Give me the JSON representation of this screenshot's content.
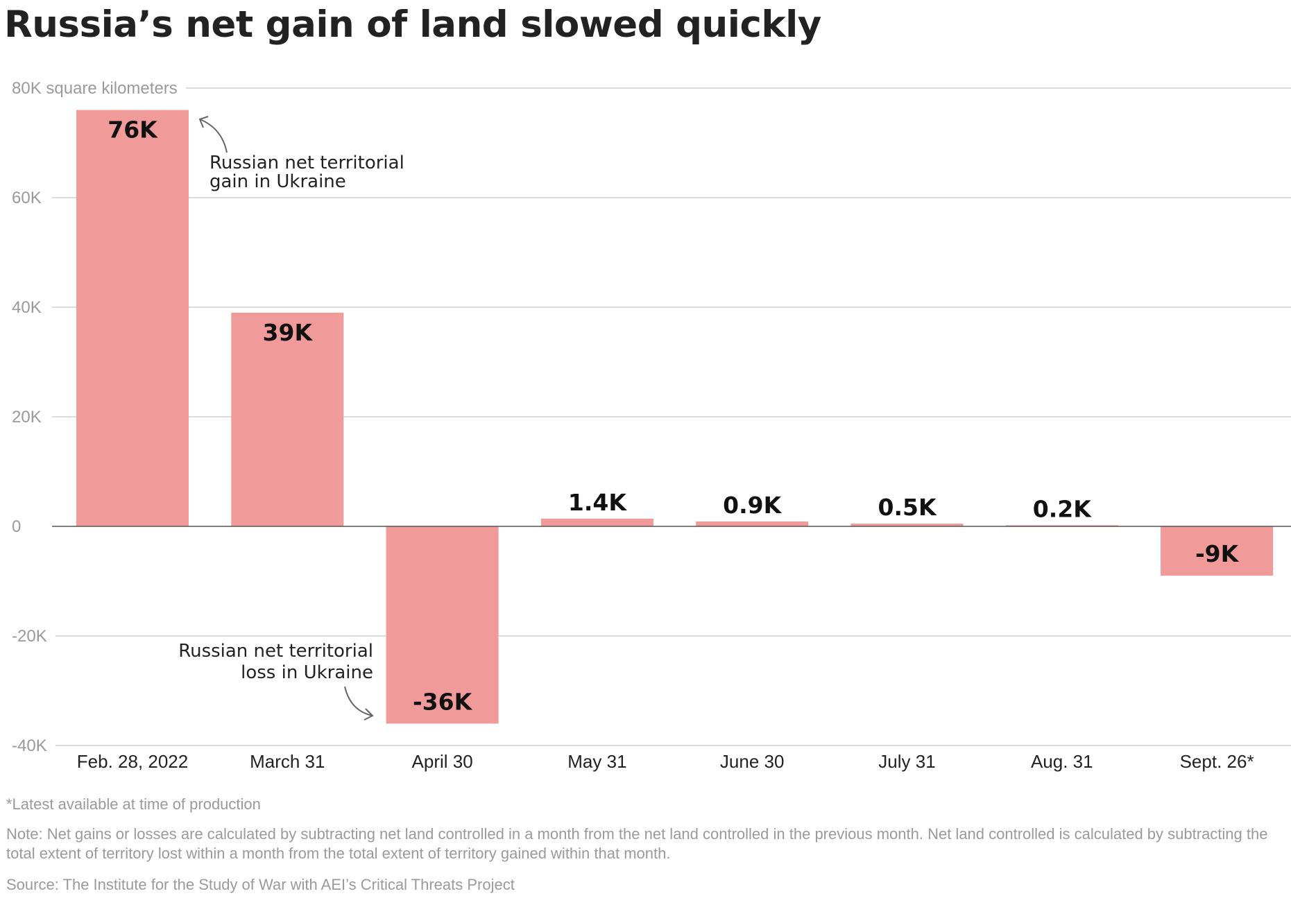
{
  "title": "Russia’s net gain of land slowed quickly",
  "colors": {
    "bar": "#f19a9a",
    "grid": "#dcdcdc",
    "zero_line": "#555555",
    "text": "#222222",
    "muted": "#9a9a9a"
  },
  "annotations": {
    "gain": [
      "Russian net territorial",
      "gain in Ukraine"
    ],
    "loss": [
      "Russian net territorial",
      "loss in Ukraine"
    ]
  },
  "footnotes": {
    "asterisk": "*Latest available at time of production",
    "note": "Note: Net gains or losses are calculated by subtracting net land controlled in a month from the net land controlled in the previous month. Net land controlled is calculated by subtracting the total extent of territory lost within a month from the total extent of territory gained within that month.",
    "source": "Source: The Institute for the Study of War with AEI’s Critical Threats Project"
  },
  "chart_data": {
    "type": "bar",
    "title": "Russia’s net gain of land slowed quickly",
    "ylabel": "square kilometers",
    "categories": [
      "Feb. 28, 2022",
      "March 31",
      "April 30",
      "May 31",
      "June 30",
      "July 31",
      "Aug. 31",
      "Sept. 26*"
    ],
    "values": [
      76000,
      39000,
      -36000,
      1400,
      900,
      500,
      200,
      -9000
    ],
    "data_labels": [
      "76K",
      "39K",
      "-36K",
      "1.4K",
      "0.9K",
      "0.5K",
      "0.2K",
      "-9K"
    ],
    "ylim": [
      -40000,
      80000
    ],
    "yticks": [
      80000,
      60000,
      40000,
      20000,
      0,
      -20000,
      -40000
    ],
    "ytick_labels": [
      "80K square kilometers",
      "60K",
      "40K",
      "20K",
      "0",
      "-20K",
      "-40K"
    ],
    "grid": true,
    "legend": "none"
  }
}
